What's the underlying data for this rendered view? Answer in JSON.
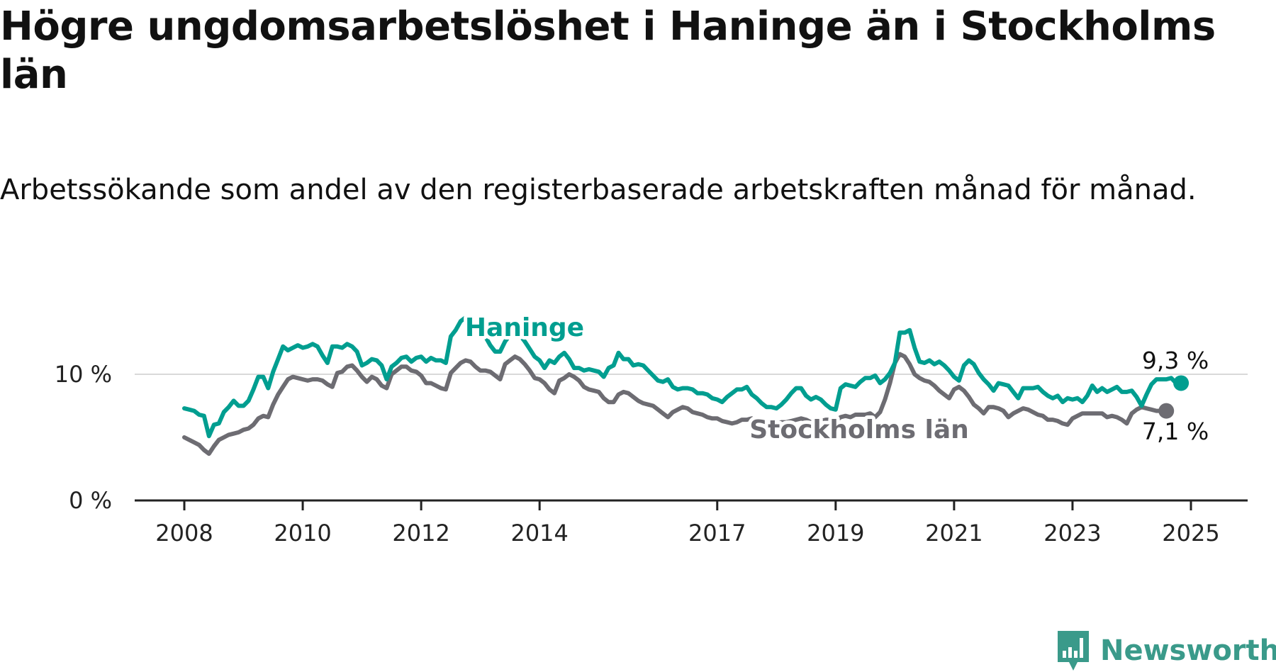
{
  "title": "Högre ungdomsarbetslöshet i Haninge än i Stockholms län",
  "subtitle": "Arbetssökande som andel av den registerbaserade arbetskraften månad för månad.",
  "brand": {
    "name": "Newsworthy",
    "icon": "newsworthy-logo-icon",
    "color": "#3a9a8a"
  },
  "colors": {
    "haninge": "#009e90",
    "stockholm": "#6d6c72",
    "axis": "#222222",
    "grid": "#d9d9d9"
  },
  "chart_data": {
    "type": "line",
    "title": "Högre ungdomsarbetslöshet i Haninge än i Stockholms län",
    "subtitle": "Arbetssökande som andel av den registerbaserade arbetskraften månad för månad.",
    "xlabel": "",
    "ylabel": "",
    "x_start": "2008-01",
    "x_ticks": [
      "2008",
      "2010",
      "2012",
      "2014",
      "2017",
      "2019",
      "2021",
      "2023",
      "2025"
    ],
    "y_ticks": [
      "0 %",
      "10 %"
    ],
    "ylim": [
      0,
      15
    ],
    "grid": "horizontal gridline at 10 %",
    "legend": "direct labels on lines",
    "series": [
      {
        "name": "Haninge",
        "color": "#009e90",
        "end_label": "9,3 %",
        "values": [
          7.3,
          7.2,
          7.1,
          6.8,
          6.7,
          5.1,
          6.0,
          6.1,
          7.0,
          7.4,
          7.9,
          7.5,
          7.5,
          7.9,
          8.8,
          9.8,
          9.8,
          8.9,
          10.2,
          11.2,
          12.2,
          11.9,
          12.1,
          12.3,
          12.1,
          12.2,
          12.4,
          12.2,
          11.5,
          10.9,
          12.2,
          12.2,
          12.1,
          12.4,
          12.2,
          11.8,
          10.7,
          10.9,
          11.2,
          11.1,
          10.7,
          9.6,
          10.6,
          10.9,
          11.3,
          11.4,
          11.0,
          11.3,
          11.4,
          11.0,
          11.3,
          11.1,
          11.1,
          10.9,
          13.0,
          13.5,
          14.2,
          14.5,
          14.3,
          14.1,
          13.6,
          13.0,
          12.3,
          11.8,
          11.8,
          12.6,
          13.1,
          13.3,
          13.1,
          12.6,
          12.0,
          11.4,
          11.1,
          10.5,
          11.1,
          10.9,
          11.4,
          11.7,
          11.2,
          10.5,
          10.5,
          10.3,
          10.4,
          10.3,
          10.2,
          9.8,
          10.5,
          10.7,
          11.7,
          11.2,
          11.2,
          10.7,
          10.8,
          10.7,
          10.3,
          9.9,
          9.5,
          9.4,
          9.6,
          9.0,
          8.8,
          8.9,
          8.9,
          8.8,
          8.5,
          8.5,
          8.4,
          8.1,
          8.0,
          7.8,
          8.2,
          8.5,
          8.8,
          8.8,
          9.0,
          8.4,
          8.1,
          7.7,
          7.4,
          7.4,
          7.3,
          7.6,
          8.0,
          8.5,
          8.9,
          8.9,
          8.3,
          8.0,
          8.2,
          8.0,
          7.6,
          7.3,
          7.2,
          8.9,
          9.2,
          9.1,
          9.0,
          9.4,
          9.7,
          9.7,
          9.9,
          9.3,
          9.6,
          10.1,
          10.9,
          13.3,
          13.3,
          13.5,
          12.1,
          11.0,
          10.9,
          11.1,
          10.8,
          11.0,
          10.7,
          10.3,
          9.8,
          9.5,
          10.7,
          11.1,
          10.8,
          10.1,
          9.6,
          9.2,
          8.7,
          9.3,
          9.2,
          9.1,
          8.6,
          8.1,
          8.9,
          8.9,
          8.9,
          9.0,
          8.6,
          8.3,
          8.1,
          8.3,
          7.8,
          8.1,
          8.0,
          8.1,
          7.8,
          8.3,
          9.1,
          8.6,
          8.9,
          8.6,
          8.8,
          9.0,
          8.6,
          8.6,
          8.7,
          8.2,
          7.5,
          8.4,
          9.2,
          9.6,
          9.6,
          9.6,
          9.7,
          9.3,
          9.3
        ]
      },
      {
        "name": "Stockholms län",
        "color": "#6d6c72",
        "end_label": "7,1 %",
        "values": [
          5.0,
          4.8,
          4.6,
          4.4,
          4.0,
          3.7,
          4.3,
          4.8,
          5.0,
          5.2,
          5.3,
          5.4,
          5.6,
          5.7,
          6.0,
          6.5,
          6.7,
          6.6,
          7.6,
          8.4,
          9.0,
          9.6,
          9.8,
          9.7,
          9.6,
          9.5,
          9.6,
          9.6,
          9.5,
          9.2,
          9.0,
          10.1,
          10.2,
          10.6,
          10.7,
          10.3,
          9.8,
          9.4,
          9.8,
          9.6,
          9.1,
          8.9,
          10.0,
          10.3,
          10.6,
          10.6,
          10.3,
          10.2,
          9.9,
          9.3,
          9.3,
          9.1,
          8.9,
          8.8,
          10.1,
          10.5,
          10.9,
          11.1,
          11.0,
          10.6,
          10.3,
          10.3,
          10.2,
          9.9,
          9.6,
          10.8,
          11.1,
          11.4,
          11.2,
          10.8,
          10.3,
          9.7,
          9.6,
          9.3,
          8.8,
          8.5,
          9.5,
          9.7,
          10.0,
          9.8,
          9.5,
          9.0,
          8.8,
          8.7,
          8.6,
          8.1,
          7.8,
          7.8,
          8.4,
          8.6,
          8.5,
          8.2,
          7.9,
          7.7,
          7.6,
          7.5,
          7.2,
          6.9,
          6.6,
          7.0,
          7.2,
          7.4,
          7.3,
          7.0,
          6.9,
          6.8,
          6.6,
          6.5,
          6.5,
          6.3,
          6.2,
          6.1,
          6.2,
          6.4,
          6.4,
          6.5,
          6.2,
          6.0,
          6.0,
          6.1,
          6.1,
          6.2,
          6.2,
          6.3,
          6.4,
          6.5,
          6.4,
          6.2,
          6.3,
          6.3,
          6.4,
          6.4,
          6.3,
          6.6,
          6.7,
          6.6,
          6.8,
          6.8,
          6.8,
          6.9,
          6.6,
          7.0,
          8.0,
          9.3,
          10.9,
          11.6,
          11.4,
          10.8,
          10.0,
          9.7,
          9.5,
          9.4,
          9.1,
          8.7,
          8.4,
          8.1,
          8.8,
          9.0,
          8.7,
          8.2,
          7.6,
          7.3,
          6.9,
          7.4,
          7.4,
          7.3,
          7.1,
          6.6,
          6.9,
          7.1,
          7.3,
          7.2,
          7.0,
          6.8,
          6.7,
          6.4,
          6.4,
          6.3,
          6.1,
          6.0,
          6.5,
          6.7,
          6.9,
          6.9,
          6.9,
          6.9,
          6.9,
          6.6,
          6.7,
          6.6,
          6.4,
          6.1,
          6.9,
          7.2,
          7.4,
          7.3,
          7.2,
          7.1,
          7.1,
          7.1
        ]
      }
    ]
  }
}
